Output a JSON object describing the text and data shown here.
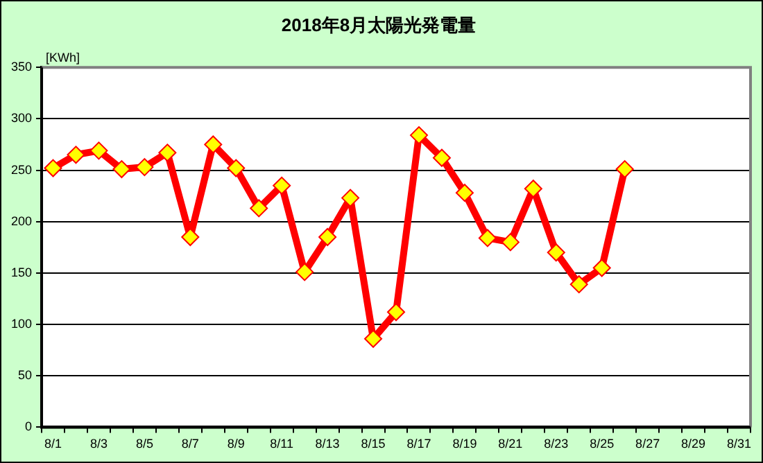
{
  "chart_data": {
    "type": "line",
    "title": "2018年8月太陽光発電量",
    "ylabel": "[KWh]",
    "categories": [
      "8/1",
      null,
      "8/3",
      null,
      "8/5",
      null,
      "8/7",
      null,
      "8/9",
      null,
      "8/11",
      null,
      "8/13",
      null,
      "8/15",
      null,
      "8/17",
      null,
      "8/19",
      null,
      "8/21",
      null,
      "8/23",
      null,
      "8/25",
      null,
      "8/27",
      null,
      "8/29",
      null,
      "8/31"
    ],
    "series": [
      {
        "color": "#ff0000",
        "values": [
          252,
          265,
          269,
          251,
          253,
          267,
          185,
          275,
          252,
          213,
          235,
          151,
          185,
          223,
          86,
          112,
          284,
          262,
          228,
          184,
          180,
          232,
          170,
          139,
          155,
          251,
          null,
          null,
          null,
          null,
          null
        ]
      }
    ],
    "ylim": [
      0,
      350
    ],
    "yticks": [
      0,
      50,
      100,
      150,
      200,
      250,
      300,
      350
    ],
    "grid": "y",
    "legend": false,
    "marker": "diamond",
    "line_style": "solid"
  }
}
